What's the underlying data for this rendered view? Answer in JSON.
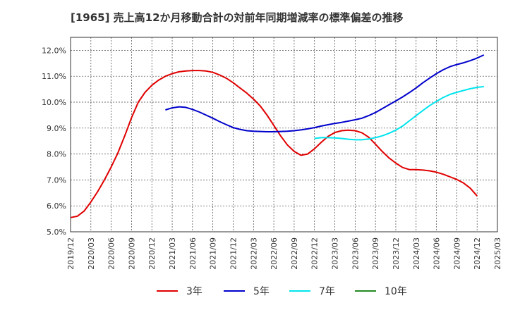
{
  "title": "[1965]  売上高12か月移動合計の対前年同期増減率の標準偏差の推移",
  "chart_data": {
    "type": "line",
    "title": "[1965]  売上高12か月移動合計の対前年同期増減率の標準偏差の推移",
    "xlabel": "",
    "ylabel": "",
    "x_ticks": [
      "2019/12",
      "2020/03",
      "2020/06",
      "2020/09",
      "2020/12",
      "2021/03",
      "2021/06",
      "2021/09",
      "2021/12",
      "2022/03",
      "2022/06",
      "2022/09",
      "2022/12",
      "2023/03",
      "2023/06",
      "2023/09",
      "2023/12",
      "2024/03",
      "2024/06",
      "2024/09",
      "2024/12",
      "2025/03"
    ],
    "y_ticks": [
      "5.0%",
      "6.0%",
      "7.0%",
      "8.0%",
      "9.0%",
      "10.0%",
      "11.0%",
      "12.0%"
    ],
    "ylim": [
      5.0,
      12.5
    ],
    "grid": true,
    "legend_position": "bottom",
    "series": [
      {
        "name": "3年",
        "color": "#e00000",
        "points": [
          [
            "2019/12",
            5.55
          ],
          [
            "2020/01",
            5.6
          ],
          [
            "2020/02",
            5.8
          ],
          [
            "2020/03",
            6.15
          ],
          [
            "2020/04",
            6.55
          ],
          [
            "2020/05",
            7.0
          ],
          [
            "2020/06",
            7.5
          ],
          [
            "2020/07",
            8.05
          ],
          [
            "2020/08",
            8.7
          ],
          [
            "2020/09",
            9.4
          ],
          [
            "2020/10",
            10.0
          ],
          [
            "2020/11",
            10.38
          ],
          [
            "2020/12",
            10.65
          ],
          [
            "2021/01",
            10.85
          ],
          [
            "2021/02",
            11.0
          ],
          [
            "2021/03",
            11.1
          ],
          [
            "2021/04",
            11.17
          ],
          [
            "2021/05",
            11.2
          ],
          [
            "2021/06",
            11.22
          ],
          [
            "2021/07",
            11.22
          ],
          [
            "2021/08",
            11.2
          ],
          [
            "2021/09",
            11.15
          ],
          [
            "2021/10",
            11.05
          ],
          [
            "2021/11",
            10.92
          ],
          [
            "2021/12",
            10.75
          ],
          [
            "2022/01",
            10.55
          ],
          [
            "2022/02",
            10.35
          ],
          [
            "2022/03",
            10.12
          ],
          [
            "2022/04",
            9.85
          ],
          [
            "2022/05",
            9.5
          ],
          [
            "2022/06",
            9.1
          ],
          [
            "2022/07",
            8.7
          ],
          [
            "2022/08",
            8.35
          ],
          [
            "2022/09",
            8.1
          ],
          [
            "2022/10",
            7.95
          ],
          [
            "2022/11",
            8.0
          ],
          [
            "2022/12",
            8.2
          ],
          [
            "2023/01",
            8.45
          ],
          [
            "2023/02",
            8.68
          ],
          [
            "2023/03",
            8.83
          ],
          [
            "2023/04",
            8.9
          ],
          [
            "2023/05",
            8.92
          ],
          [
            "2023/06",
            8.9
          ],
          [
            "2023/07",
            8.82
          ],
          [
            "2023/08",
            8.65
          ],
          [
            "2023/09",
            8.38
          ],
          [
            "2023/10",
            8.1
          ],
          [
            "2023/11",
            7.85
          ],
          [
            "2023/12",
            7.65
          ],
          [
            "2024/01",
            7.48
          ],
          [
            "2024/02",
            7.4
          ],
          [
            "2024/03",
            7.4
          ],
          [
            "2024/04",
            7.38
          ],
          [
            "2024/05",
            7.35
          ],
          [
            "2024/06",
            7.3
          ],
          [
            "2024/07",
            7.22
          ],
          [
            "2024/08",
            7.12
          ],
          [
            "2024/09",
            7.02
          ],
          [
            "2024/10",
            6.88
          ],
          [
            "2024/11",
            6.68
          ],
          [
            "2024/12",
            6.38
          ]
        ]
      },
      {
        "name": "5年",
        "color": "#0000cc",
        "points": [
          [
            "2021/02",
            9.7
          ],
          [
            "2021/03",
            9.78
          ],
          [
            "2021/04",
            9.82
          ],
          [
            "2021/05",
            9.8
          ],
          [
            "2021/06",
            9.72
          ],
          [
            "2021/07",
            9.62
          ],
          [
            "2021/08",
            9.5
          ],
          [
            "2021/09",
            9.38
          ],
          [
            "2021/10",
            9.25
          ],
          [
            "2021/11",
            9.13
          ],
          [
            "2021/12",
            9.02
          ],
          [
            "2022/01",
            8.95
          ],
          [
            "2022/02",
            8.9
          ],
          [
            "2022/03",
            8.88
          ],
          [
            "2022/04",
            8.87
          ],
          [
            "2022/05",
            8.86
          ],
          [
            "2022/06",
            8.86
          ],
          [
            "2022/07",
            8.87
          ],
          [
            "2022/08",
            8.88
          ],
          [
            "2022/09",
            8.9
          ],
          [
            "2022/10",
            8.93
          ],
          [
            "2022/11",
            8.97
          ],
          [
            "2022/12",
            9.02
          ],
          [
            "2023/01",
            9.08
          ],
          [
            "2023/02",
            9.13
          ],
          [
            "2023/03",
            9.18
          ],
          [
            "2023/04",
            9.22
          ],
          [
            "2023/05",
            9.27
          ],
          [
            "2023/06",
            9.32
          ],
          [
            "2023/07",
            9.38
          ],
          [
            "2023/08",
            9.48
          ],
          [
            "2023/09",
            9.6
          ],
          [
            "2023/10",
            9.75
          ],
          [
            "2023/11",
            9.9
          ],
          [
            "2023/12",
            10.05
          ],
          [
            "2024/01",
            10.2
          ],
          [
            "2024/02",
            10.37
          ],
          [
            "2024/03",
            10.55
          ],
          [
            "2024/04",
            10.75
          ],
          [
            "2024/05",
            10.93
          ],
          [
            "2024/06",
            11.1
          ],
          [
            "2024/07",
            11.25
          ],
          [
            "2024/08",
            11.37
          ],
          [
            "2024/09",
            11.45
          ],
          [
            "2024/10",
            11.52
          ],
          [
            "2024/11",
            11.6
          ],
          [
            "2024/12",
            11.7
          ],
          [
            "2025/01",
            11.82
          ]
        ]
      },
      {
        "name": "7年",
        "color": "#00e5ee",
        "points": [
          [
            "2022/12",
            8.6
          ],
          [
            "2023/01",
            8.63
          ],
          [
            "2023/02",
            8.63
          ],
          [
            "2023/03",
            8.62
          ],
          [
            "2023/04",
            8.6
          ],
          [
            "2023/05",
            8.57
          ],
          [
            "2023/06",
            8.55
          ],
          [
            "2023/07",
            8.55
          ],
          [
            "2023/08",
            8.58
          ],
          [
            "2023/09",
            8.63
          ],
          [
            "2023/10",
            8.7
          ],
          [
            "2023/11",
            8.8
          ],
          [
            "2023/12",
            8.92
          ],
          [
            "2024/01",
            9.08
          ],
          [
            "2024/02",
            9.28
          ],
          [
            "2024/03",
            9.48
          ],
          [
            "2024/04",
            9.68
          ],
          [
            "2024/05",
            9.87
          ],
          [
            "2024/06",
            10.03
          ],
          [
            "2024/07",
            10.18
          ],
          [
            "2024/08",
            10.3
          ],
          [
            "2024/09",
            10.38
          ],
          [
            "2024/10",
            10.45
          ],
          [
            "2024/11",
            10.52
          ],
          [
            "2024/12",
            10.57
          ],
          [
            "2025/01",
            10.6
          ]
        ]
      },
      {
        "name": "10年",
        "color": "#228b22",
        "points": []
      }
    ]
  }
}
